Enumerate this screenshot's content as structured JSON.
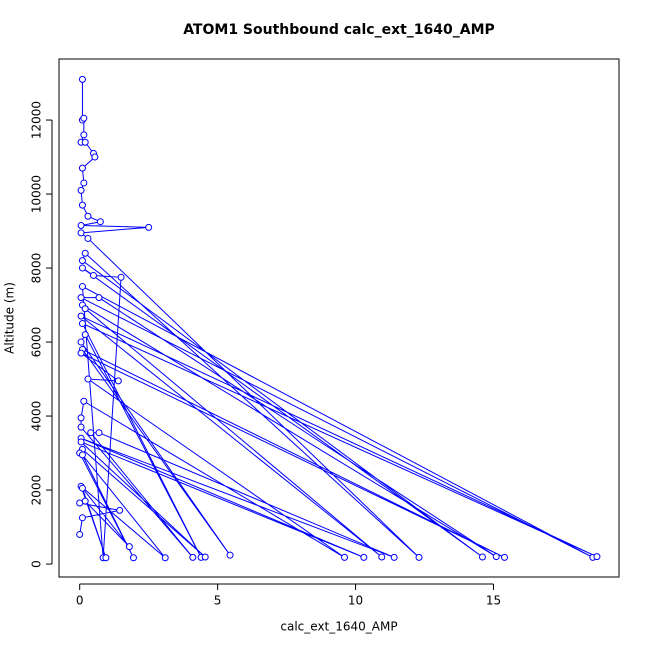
{
  "chart_data": {
    "type": "scatter-line",
    "title": "ATOM1 Southbound calc_ext_1640_AMP",
    "x_label": "calc_ext_1640_AMP",
    "y_label": "Altitude (m)",
    "color": "#0000ff",
    "grid": false,
    "x": [
      0.1,
      0.1,
      0.15,
      0.15,
      0.05,
      0.2,
      0.5,
      0.55,
      0.1,
      0.15,
      0.05,
      0.1,
      0.3,
      0.75,
      0.05,
      2.5,
      0.05,
      0.3,
      12.3,
      0.2,
      0.1,
      14.6,
      0.1,
      0.5,
      1.5,
      0.85,
      0.1,
      18.6,
      0.05,
      0.7,
      15.1,
      0.1,
      0.2,
      10.95,
      0.05,
      18.75,
      0.1,
      4.4,
      0.2,
      0.05,
      5.45,
      0.1,
      15.4,
      0.05,
      1.4,
      0.3,
      9.6,
      0.15,
      0.05,
      0.05,
      4.1,
      0.4,
      0.7,
      11.4,
      0.05,
      10.3,
      0.05,
      4.55,
      0.1,
      0,
      1.95,
      0.1,
      3.1,
      0.05,
      0.95,
      0.1,
      1.8,
      0.2,
      0,
      1.45,
      0.1,
      0
    ],
    "values": [
      13100,
      12000,
      12050,
      11600,
      11400,
      11400,
      11100,
      11000,
      10700,
      10300,
      10100,
      9700,
      9400,
      9250,
      9150,
      9100,
      8950,
      8800,
      180,
      8400,
      8200,
      190,
      8000,
      7800,
      7750,
      170,
      7500,
      180,
      7200,
      7200,
      200,
      7000,
      6900,
      190,
      6700,
      200,
      6500,
      180,
      6200,
      6000,
      240,
      5800,
      180,
      5700,
      4950,
      5000,
      180,
      4400,
      3950,
      3700,
      180,
      3550,
      3550,
      180,
      3400,
      180,
      3300,
      190,
      3100,
      3000,
      170,
      2950,
      170,
      2100,
      170,
      2050,
      470,
      1700,
      1650,
      1450,
      1250,
      800
    ],
    "xlim": [
      -0.75,
      19.55
    ],
    "ylim": [
      -350,
      13650
    ],
    "xticks": [
      0,
      5,
      10,
      15
    ],
    "yticks": [
      0,
      2000,
      4000,
      6000,
      8000,
      10000,
      12000
    ]
  }
}
